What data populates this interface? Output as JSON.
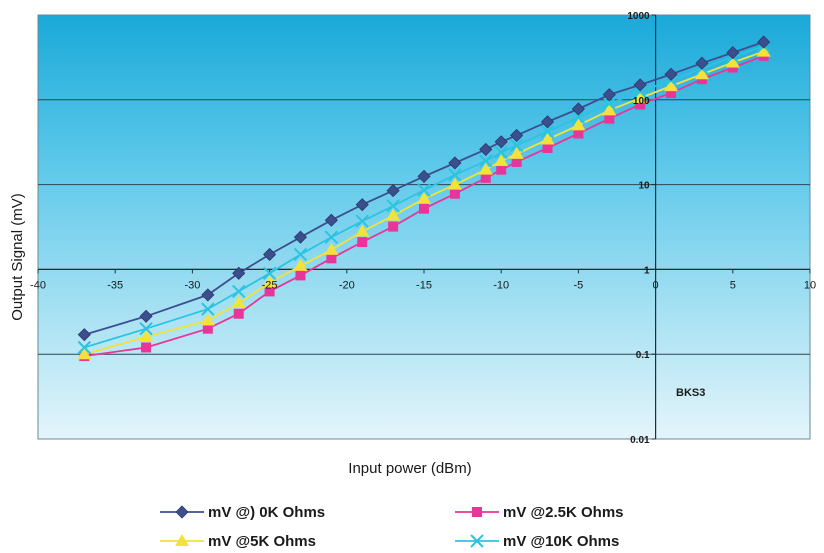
{
  "chart_data": {
    "type": "line",
    "xlabel": "Input power (dBm)",
    "ylabel": "Output Signal (mV)",
    "xlim": [
      -40,
      10
    ],
    "ylim": [
      0.01,
      1000
    ],
    "yscale": "log",
    "x_ticks": [
      "-40",
      "-35",
      "-30",
      "-25",
      "-20",
      "-15",
      "-10",
      "-5",
      "0",
      "5",
      "10"
    ],
    "y_ticks": [
      "1000",
      "100",
      "10",
      "1",
      "0.1",
      "0.01"
    ],
    "grid": "horizontal",
    "legend_position": "bottom",
    "annotation": "BKS3",
    "series": [
      {
        "name": "mV @) 0K Ohms",
        "color": "#3b4f8f",
        "marker": "diamond",
        "x": [
          -37,
          -33,
          -29,
          -27,
          -25,
          -23,
          -21,
          -19,
          -17,
          -15,
          -13,
          -11,
          -10,
          -9,
          -7,
          -5,
          -3,
          -1,
          1,
          3,
          5,
          7
        ],
        "y": [
          0.17,
          0.28,
          0.5,
          0.9,
          1.5,
          2.4,
          3.8,
          5.8,
          8.5,
          12.5,
          18,
          26,
          32,
          38,
          55,
          78,
          115,
          150,
          200,
          270,
          360,
          480
        ]
      },
      {
        "name": "mV @2.5K Ohms",
        "color": "#e8359a",
        "marker": "square",
        "x": [
          -37,
          -33,
          -29,
          -27,
          -25,
          -23,
          -21,
          -19,
          -17,
          -15,
          -13,
          -11,
          -10,
          -9,
          -7,
          -5,
          -3,
          -1,
          1,
          3,
          5,
          7
        ],
        "y": [
          0.095,
          0.12,
          0.2,
          0.3,
          0.55,
          0.85,
          1.35,
          2.1,
          3.2,
          5.2,
          7.8,
          12,
          15,
          18.5,
          27,
          40,
          60,
          88,
          120,
          175,
          240,
          330
        ]
      },
      {
        "name": "mV @5K Ohms",
        "color": "#f2e23a",
        "marker": "triangle",
        "x": [
          -37,
          -33,
          -29,
          -27,
          -25,
          -23,
          -21,
          -19,
          -17,
          -15,
          -13,
          -11,
          -10,
          -9,
          -7,
          -5,
          -3,
          -1,
          1,
          3,
          5,
          7
        ],
        "y": [
          0.1,
          0.16,
          0.25,
          0.4,
          0.7,
          1.1,
          1.7,
          2.8,
          4.3,
          6.8,
          10,
          15,
          19,
          23,
          34,
          50,
          75,
          105,
          145,
          200,
          275,
          370
        ]
      },
      {
        "name": "mV @10K Ohms",
        "color": "#2bc4e0",
        "marker": "x",
        "x": [
          -37,
          -33,
          -29,
          -27,
          -25,
          -23,
          -21,
          -19,
          -17,
          -15,
          -13,
          -11,
          -10,
          -9,
          -7,
          -5,
          -3,
          -1,
          1,
          3,
          5,
          7
        ],
        "y": [
          0.12,
          0.2,
          0.34,
          0.55,
          0.9,
          1.5,
          2.4,
          3.7,
          5.6,
          8.6,
          13,
          19,
          24,
          29,
          42,
          62,
          90,
          125,
          170,
          235,
          320,
          430
        ]
      }
    ]
  }
}
